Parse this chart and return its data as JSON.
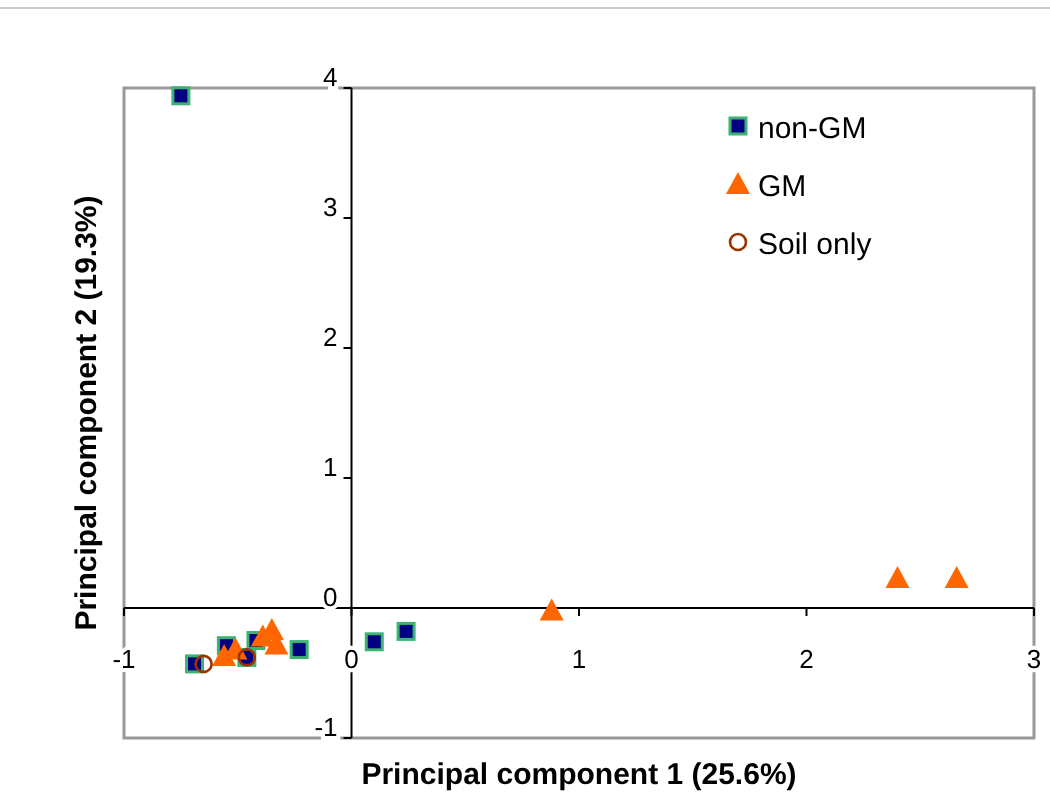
{
  "chart_data": {
    "type": "scatter",
    "xlabel": "Principal component 1 (25.6%)",
    "ylabel": "Principal component 2 (19.3%)",
    "xlim": [
      -1,
      3
    ],
    "ylim": [
      -1,
      4
    ],
    "xticks": [
      -1,
      0,
      1,
      2,
      3
    ],
    "yticks": [
      -1,
      0,
      1,
      2,
      3,
      4
    ],
    "grid": false,
    "legend": "top right",
    "series": [
      {
        "name": "non-GM",
        "color": "#000080",
        "marker": "square",
        "x": [
          -0.75,
          -0.69,
          -0.55,
          -0.46,
          -0.42,
          -0.23,
          0.1,
          0.24
        ],
        "values": [
          3.94,
          -0.43,
          -0.29,
          -0.38,
          -0.25,
          -0.32,
          -0.26,
          -0.18
        ]
      },
      {
        "name": "GM",
        "color": "#ff6600",
        "marker": "triangle",
        "x": [
          -0.56,
          -0.51,
          -0.39,
          -0.35,
          -0.33,
          0.88,
          2.4,
          2.66
        ],
        "values": [
          -0.37,
          -0.32,
          -0.22,
          -0.17,
          -0.28,
          -0.02,
          0.23,
          0.23
        ]
      },
      {
        "name": "Soil only",
        "color": "#993300",
        "marker": "circle",
        "x": [
          -0.65,
          -0.46
        ],
        "values": [
          -0.43,
          -0.38
        ]
      }
    ]
  }
}
